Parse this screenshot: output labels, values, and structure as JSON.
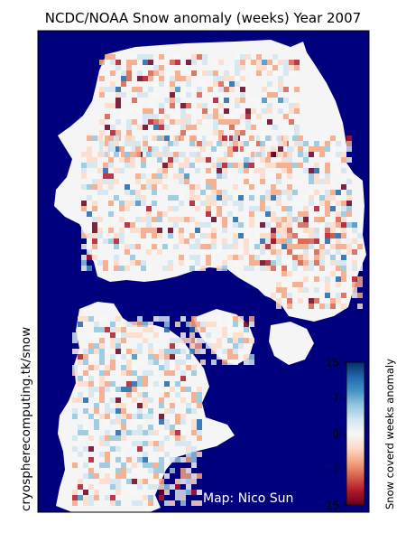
{
  "title": "NCDC/NOAA Snow anomaly (weeks) Year 2007",
  "side_label": "cryospherecomputing.tk/snow",
  "credit": "Map: Nico Sun",
  "colorbar": {
    "label": "Snow coverd weeks anomaly",
    "ticks": [
      "15",
      "7",
      "0",
      "−7",
      "−15"
    ],
    "range": [
      -15,
      15
    ],
    "colormap": [
      "#67001f",
      "#b2182b",
      "#d6604d",
      "#f4a582",
      "#fddbc7",
      "#f7f7f7",
      "#d1e5f0",
      "#92c5de",
      "#4393c3",
      "#2166ac",
      "#053061"
    ]
  },
  "colors": {
    "ocean": "#00007f",
    "no_anomaly": "#f5f5f5",
    "credit_text": "#ffffff"
  },
  "chart_data": {
    "type": "heatmap",
    "title": "NCDC/NOAA Snow anomaly (weeks) Year 2007",
    "value_label": "Snow coverd weeks anomaly",
    "value_range": [
      -15,
      15
    ],
    "grid": false,
    "legend_placement": "right"
  }
}
